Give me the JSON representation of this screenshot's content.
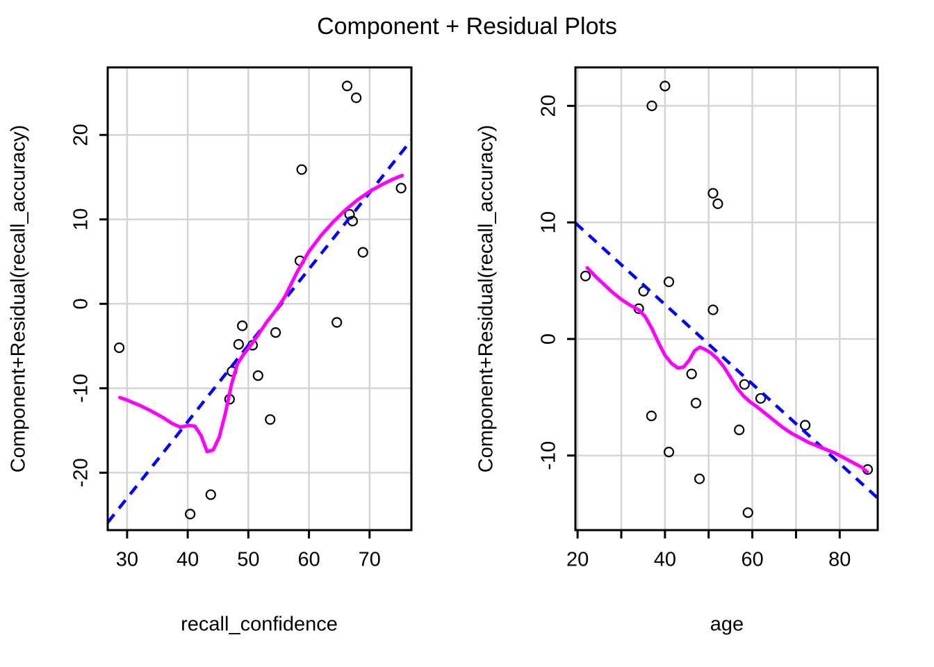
{
  "title": "Component + Residual Plots",
  "colors": {
    "linear_fit": "#0000FF",
    "smooth": "#FF00FF",
    "grid": "#D4D4D4",
    "points": "#000000",
    "axis": "#000000",
    "background": "#FFFFFF"
  },
  "chart_data": [
    {
      "type": "scatter",
      "panel": "left",
      "xlabel": "recall_confidence",
      "ylabel": "Component+Residual(recall_accuracy)",
      "xlim": [
        26.8,
        76.9
      ],
      "ylim": [
        -26.8,
        28.0
      ],
      "grid": true,
      "xticks": [
        30,
        40,
        50,
        60,
        70
      ],
      "xtick_labels": [
        "30",
        "40",
        "50",
        "60",
        "70"
      ],
      "yticks": [
        -20,
        -10,
        0,
        10,
        20
      ],
      "ytick_labels": [
        "-20",
        "-10",
        "0",
        "10",
        "20"
      ],
      "points": [
        [
          66.3,
          25.8
        ],
        [
          67.8,
          24.4
        ],
        [
          58.8,
          15.9
        ],
        [
          75.2,
          13.7
        ],
        [
          66.7,
          10.6
        ],
        [
          67.2,
          9.8
        ],
        [
          68.9,
          6.1
        ],
        [
          58.5,
          5.1
        ],
        [
          64.6,
          -2.2
        ],
        [
          49.0,
          -2.6
        ],
        [
          54.5,
          -3.4
        ],
        [
          48.4,
          -4.8
        ],
        [
          50.7,
          -4.9
        ],
        [
          28.7,
          -5.2
        ],
        [
          47.3,
          -8.0
        ],
        [
          51.6,
          -8.5
        ],
        [
          46.9,
          -11.3
        ],
        [
          53.6,
          -13.7
        ],
        [
          43.8,
          -22.6
        ],
        [
          40.4,
          -24.9
        ]
      ],
      "linear_line": {
        "name": "linear component (dashed)",
        "style": "dashed",
        "x1": 26.8,
        "y1": -25.9,
        "x2": 76.9,
        "y2": 19.4
      },
      "smooth_line": {
        "name": "loess smooth",
        "style": "solid",
        "points": [
          [
            28.8,
            -11.1
          ],
          [
            30,
            -11.4
          ],
          [
            32,
            -12.0
          ],
          [
            34,
            -12.7
          ],
          [
            36,
            -13.5
          ],
          [
            37.5,
            -14.2
          ],
          [
            38.8,
            -14.6
          ],
          [
            40.2,
            -14.4
          ],
          [
            41.2,
            -14.5
          ],
          [
            42.2,
            -15.6
          ],
          [
            43.2,
            -17.5
          ],
          [
            44.2,
            -17.3
          ],
          [
            45.2,
            -15.8
          ],
          [
            46.2,
            -13.0
          ],
          [
            47.2,
            -9.6
          ],
          [
            48.2,
            -7.1
          ],
          [
            49.2,
            -6.0
          ],
          [
            50.2,
            -5.1
          ],
          [
            51.5,
            -3.8
          ],
          [
            53,
            -2.2
          ],
          [
            54.5,
            -0.8
          ],
          [
            56,
            0.8
          ],
          [
            58,
            3.7
          ],
          [
            60,
            6.2
          ],
          [
            62,
            8.1
          ],
          [
            64,
            9.7
          ],
          [
            66,
            11.1
          ],
          [
            68,
            12.3
          ],
          [
            70,
            13.3
          ],
          [
            72,
            14.1
          ],
          [
            74,
            14.8
          ],
          [
            75.4,
            15.2
          ]
        ]
      }
    },
    {
      "type": "scatter",
      "panel": "right",
      "xlabel": "age",
      "ylabel": "Component+Residual(recall_accuracy)",
      "xlim": [
        19.5,
        88.7
      ],
      "ylim": [
        -16.4,
        23.3
      ],
      "grid": true,
      "xticks": [
        20,
        30,
        40,
        50,
        60,
        70,
        80
      ],
      "xtick_labels": [
        "20",
        "",
        "40",
        "",
        "60",
        "",
        "80"
      ],
      "yticks": [
        -10,
        0,
        10,
        20
      ],
      "ytick_labels": [
        "-10",
        "0",
        "10",
        "20"
      ],
      "points": [
        [
          40.0,
          21.7
        ],
        [
          37.0,
          20.0
        ],
        [
          51.0,
          12.5
        ],
        [
          52.1,
          11.6
        ],
        [
          21.8,
          5.4
        ],
        [
          40.9,
          4.9
        ],
        [
          35.1,
          4.1
        ],
        [
          34.0,
          2.6
        ],
        [
          51.0,
          2.5
        ],
        [
          46.1,
          -3.0
        ],
        [
          58.2,
          -3.9
        ],
        [
          61.9,
          -5.1
        ],
        [
          47.1,
          -5.5
        ],
        [
          36.9,
          -6.6
        ],
        [
          72.1,
          -7.4
        ],
        [
          57.0,
          -7.8
        ],
        [
          40.9,
          -9.7
        ],
        [
          86.4,
          -11.2
        ],
        [
          47.9,
          -12.0
        ],
        [
          59.0,
          -14.9
        ]
      ],
      "linear_line": {
        "name": "linear component (dashed)",
        "style": "dashed",
        "x1": 19.5,
        "y1": 9.95,
        "x2": 88.7,
        "y2": -13.65
      },
      "smooth_line": {
        "name": "loess smooth",
        "style": "solid",
        "points": [
          [
            22.2,
            6.1
          ],
          [
            24,
            5.4
          ],
          [
            26,
            4.7
          ],
          [
            28,
            4.0
          ],
          [
            30,
            3.4
          ],
          [
            32,
            2.9
          ],
          [
            34,
            2.5
          ],
          [
            35.5,
            1.9
          ],
          [
            37,
            0.9
          ],
          [
            38.5,
            -0.3
          ],
          [
            40,
            -1.4
          ],
          [
            41.5,
            -2.1
          ],
          [
            43,
            -2.5
          ],
          [
            44.3,
            -2.4
          ],
          [
            45.6,
            -1.8
          ],
          [
            46.8,
            -1.0
          ],
          [
            48,
            -0.7
          ],
          [
            49.2,
            -0.9
          ],
          [
            50.5,
            -1.2
          ],
          [
            52,
            -1.7
          ],
          [
            53.5,
            -2.4
          ],
          [
            55,
            -3.3
          ],
          [
            56.5,
            -4.2
          ],
          [
            58,
            -4.9
          ],
          [
            59.5,
            -5.4
          ],
          [
            61,
            -5.8
          ],
          [
            63,
            -6.4
          ],
          [
            65,
            -7.0
          ],
          [
            67,
            -7.6
          ],
          [
            69,
            -8.1
          ],
          [
            71,
            -8.5
          ],
          [
            73,
            -8.9
          ],
          [
            75,
            -9.2
          ],
          [
            77,
            -9.5
          ],
          [
            79,
            -9.8
          ],
          [
            81,
            -10.2
          ],
          [
            83,
            -10.6
          ],
          [
            85,
            -11.0
          ],
          [
            86.3,
            -11.4
          ]
        ]
      }
    }
  ]
}
